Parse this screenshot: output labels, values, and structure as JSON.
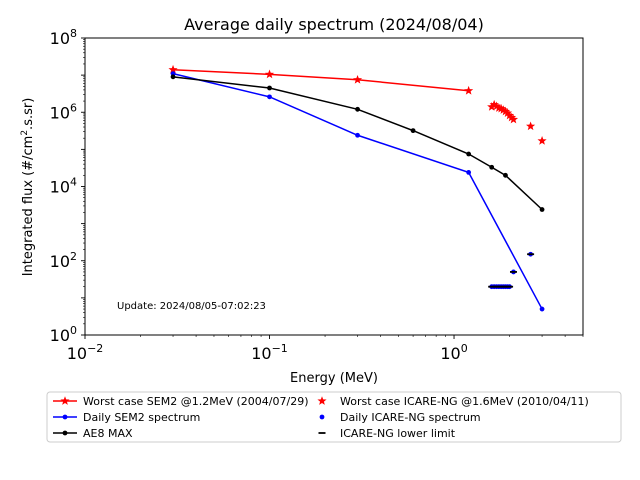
{
  "chart_data": {
    "type": "line",
    "title": "Average daily spectrum (2024/08/04)",
    "xlabel": "Energy (MeV)",
    "ylabel_prefix": "Integrated flux (#/cm",
    "ylabel_sup": "2",
    "ylabel_suffix": ".s.sr)",
    "xscale": "log",
    "yscale": "log",
    "xlim": [
      0.01,
      5
    ],
    "ylim": [
      1,
      100000000
    ],
    "x_ticks": [
      {
        "value": 0.01,
        "base": "10",
        "exp": "−2"
      },
      {
        "value": 0.1,
        "base": "10",
        "exp": "−1"
      },
      {
        "value": 1,
        "base": "10",
        "exp": "0"
      }
    ],
    "y_ticks": [
      {
        "value": 1,
        "base": "10",
        "exp": "0"
      },
      {
        "value": 100,
        "base": "10",
        "exp": "2"
      },
      {
        "value": 10000,
        "base": "10",
        "exp": "4"
      },
      {
        "value": 1000000,
        "base": "10",
        "exp": "6"
      },
      {
        "value": 100000000,
        "base": "10",
        "exp": "8"
      }
    ],
    "annotation": "Update: 2024/08/05-07:02:23",
    "legend_position": "below",
    "series": [
      {
        "name": "Worst case SEM2 @1.2MeV (2004/07/29)",
        "style": "line",
        "marker": "star",
        "color": "#ff0000",
        "x": [
          0.03,
          0.1,
          0.3,
          1.2
        ],
        "y": [
          14000000,
          10500000,
          7500000,
          3800000
        ]
      },
      {
        "name": "Daily SEM2 spectrum",
        "style": "line",
        "marker": "dot",
        "color": "#0000ff",
        "x": [
          0.03,
          0.1,
          0.3,
          1.2,
          3.0
        ],
        "y": [
          11000000,
          2600000,
          240000,
          24000,
          5
        ]
      },
      {
        "name": "AE8 MAX",
        "style": "line",
        "marker": "dot",
        "color": "#000000",
        "x": [
          0.03,
          0.1,
          0.3,
          0.6,
          1.2,
          1.6,
          1.9,
          3.0
        ],
        "y": [
          9000000,
          4500000,
          1200000,
          320000,
          75000,
          33000,
          20000,
          2400
        ]
      },
      {
        "name": "Worst case ICARE-NG @1.6MeV (2010/04/11)",
        "style": "scatter",
        "marker": "star",
        "color": "#ff0000",
        "x": [
          1.6,
          1.65,
          1.7,
          1.75,
          1.8,
          1.85,
          1.9,
          1.95,
          2.0,
          2.05,
          2.1,
          2.6,
          3.0
        ],
        "y": [
          1400000,
          1600000,
          1450000,
          1300000,
          1250000,
          1150000,
          1050000,
          950000,
          820000,
          720000,
          640000,
          420000,
          170000
        ]
      },
      {
        "name": "Daily ICARE-NG spectrum",
        "style": "scatter",
        "marker": "dot",
        "color": "#0000ff",
        "x": [
          1.6,
          1.65,
          1.7,
          1.75,
          1.8,
          1.85,
          1.9,
          1.95,
          2.0,
          2.1,
          2.6
        ],
        "y": [
          20,
          20,
          20,
          20,
          20,
          20,
          20,
          20,
          20,
          50,
          150
        ]
      },
      {
        "name": "ICARE-NG lower limit",
        "style": "scatter",
        "marker": "hline",
        "color": "#000000",
        "x": [
          1.6,
          1.65,
          1.7,
          1.75,
          1.8,
          1.85,
          1.9,
          1.95,
          2.0,
          2.1,
          2.6
        ],
        "y": [
          20,
          20,
          20,
          20,
          20,
          20,
          20,
          20,
          20,
          50,
          150
        ]
      }
    ],
    "legend_order": [
      0,
      3,
      1,
      4,
      2,
      5
    ]
  }
}
